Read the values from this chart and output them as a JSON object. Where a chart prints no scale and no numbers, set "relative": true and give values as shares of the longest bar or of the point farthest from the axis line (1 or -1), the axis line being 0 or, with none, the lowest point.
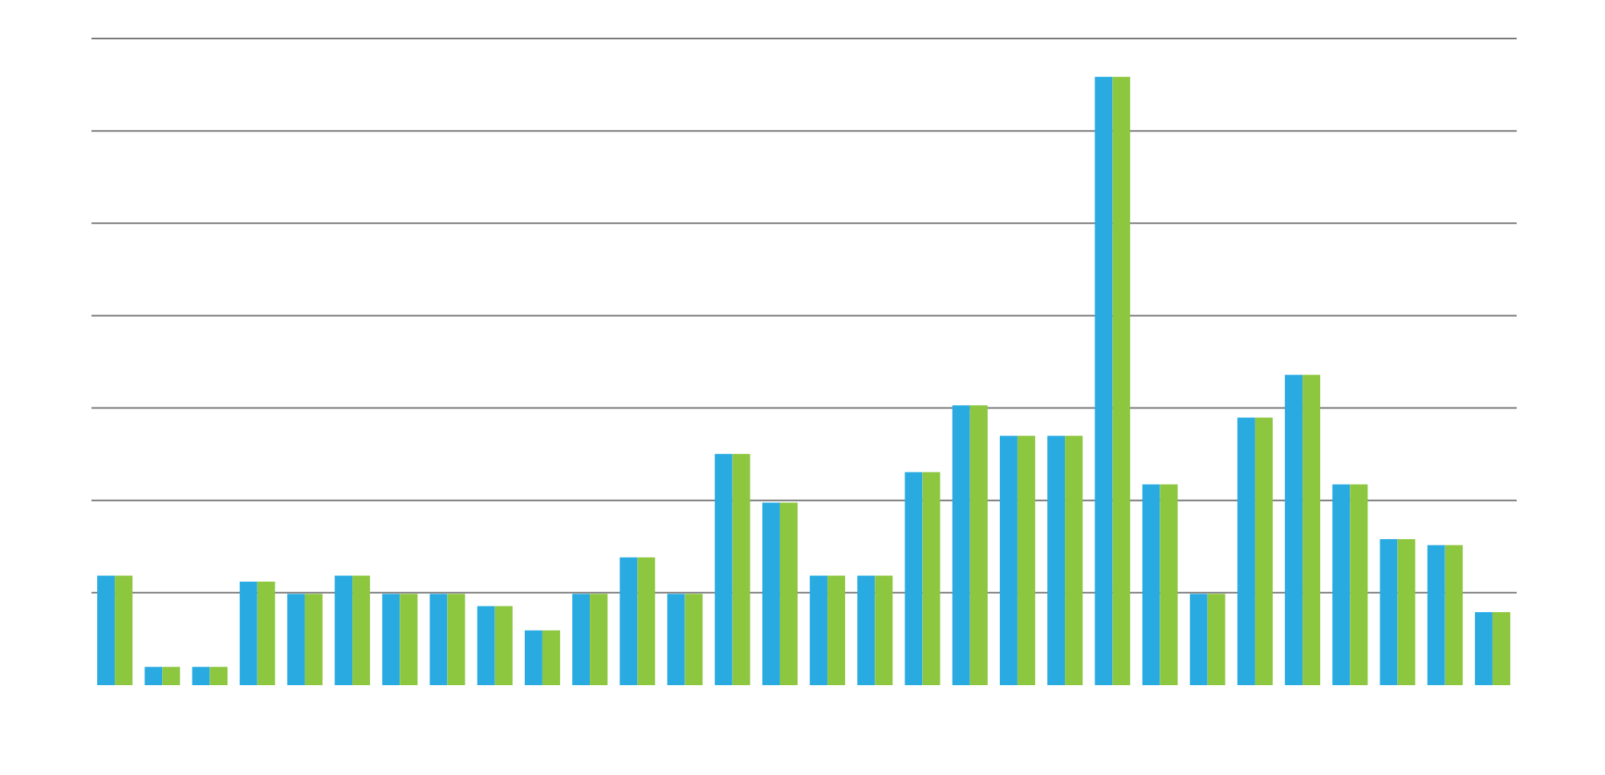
{
  "chart_data": {
    "type": "bar",
    "relative": true,
    "grid": "y",
    "categories": [
      null,
      null,
      null,
      null,
      null,
      null,
      null,
      null,
      null,
      null,
      null,
      null,
      null,
      null,
      null,
      null,
      null,
      null,
      null,
      null,
      null,
      null,
      null,
      null,
      null,
      null,
      null,
      null,
      null,
      null
    ],
    "series": [
      {
        "color": "#29abe2",
        "values": [
          0.18,
          0.03,
          0.03,
          0.17,
          0.15,
          0.18,
          0.15,
          0.15,
          0.13,
          0.09,
          0.15,
          0.21,
          0.15,
          0.38,
          0.3,
          0.18,
          0.18,
          0.35,
          0.46,
          0.41,
          0.41,
          1,
          0.33,
          0.15,
          0.44,
          0.51,
          0.33,
          0.24,
          0.23,
          0.12
        ]
      },
      {
        "color": "#8dc63f",
        "values": [
          0.18,
          0.03,
          0.03,
          0.17,
          0.15,
          0.18,
          0.15,
          0.15,
          0.13,
          0.09,
          0.15,
          0.21,
          0.15,
          0.38,
          0.3,
          0.18,
          0.18,
          0.35,
          0.46,
          0.41,
          0.41,
          1,
          0.33,
          0.15,
          0.44,
          0.51,
          0.33,
          0.24,
          0.23,
          0.12
        ]
      }
    ]
  }
}
